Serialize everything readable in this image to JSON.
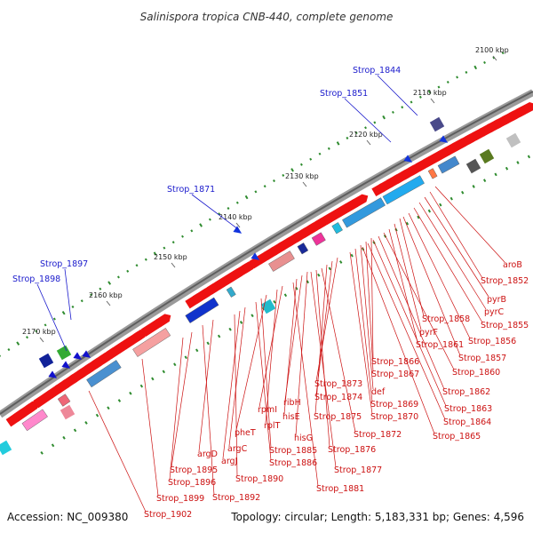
{
  "title": "Salinispora tropica CNB-440, complete genome",
  "accession_text": "Accession: NC_009380",
  "summary_text": "Topology: circular; Length: 5,183,331 bp; Genes: 4,596",
  "colors": {
    "backbone": "#8a8a8a",
    "tick": "#2e8b2e",
    "forward_gene": "#ee1111",
    "outer_label": "#1a1acc",
    "inner_label": "#cc1111"
  },
  "ticks": [
    {
      "label": "2100 kbp"
    },
    {
      "label": "2110 kbp"
    },
    {
      "label": "2120 kbp"
    },
    {
      "label": "2130 kbp"
    },
    {
      "label": "2140 kbp"
    },
    {
      "label": "2150 kbp"
    },
    {
      "label": "2160 kbp"
    },
    {
      "label": "2170 kbp"
    }
  ],
  "outer_labels": [
    {
      "text": "Strop_1844"
    },
    {
      "text": "Strop_1851"
    },
    {
      "text": "Strop_1871"
    },
    {
      "text": "Strop_1897"
    },
    {
      "text": "Strop_1898"
    }
  ],
  "inner_labels": [
    {
      "text": "aroB"
    },
    {
      "text": "Strop_1852"
    },
    {
      "text": "pyrB"
    },
    {
      "text": "pyrC"
    },
    {
      "text": "Strop_1855"
    },
    {
      "text": "Strop_1858"
    },
    {
      "text": "pyrF"
    },
    {
      "text": "Strop_1856"
    },
    {
      "text": "Strop_1861"
    },
    {
      "text": "Strop_1857"
    },
    {
      "text": "Strop_1866"
    },
    {
      "text": "Strop_1860"
    },
    {
      "text": "Strop_1867"
    },
    {
      "text": "Strop_1873"
    },
    {
      "text": "def"
    },
    {
      "text": "Strop_1862"
    },
    {
      "text": "Strop_1874"
    },
    {
      "text": "Strop_1869"
    },
    {
      "text": "ribH"
    },
    {
      "text": "Strop_1863"
    },
    {
      "text": "rpmI"
    },
    {
      "text": "hisE"
    },
    {
      "text": "Strop_1875"
    },
    {
      "text": "Strop_1870"
    },
    {
      "text": "rplT"
    },
    {
      "text": "Strop_1864"
    },
    {
      "text": "pheT"
    },
    {
      "text": "hisG"
    },
    {
      "text": "Strop_1872"
    },
    {
      "text": "Strop_1865"
    },
    {
      "text": "Strop_1885"
    },
    {
      "text": "Strop_1876"
    },
    {
      "text": "argD"
    },
    {
      "text": "argC"
    },
    {
      "text": "argJ"
    },
    {
      "text": "Strop_1886"
    },
    {
      "text": "Strop_1895"
    },
    {
      "text": "Strop_1877"
    },
    {
      "text": "Strop_1890"
    },
    {
      "text": "Strop_1896"
    },
    {
      "text": "Strop_1881"
    },
    {
      "text": "Strop_1899"
    },
    {
      "text": "Strop_1892"
    },
    {
      "text": "Strop_1902"
    }
  ]
}
